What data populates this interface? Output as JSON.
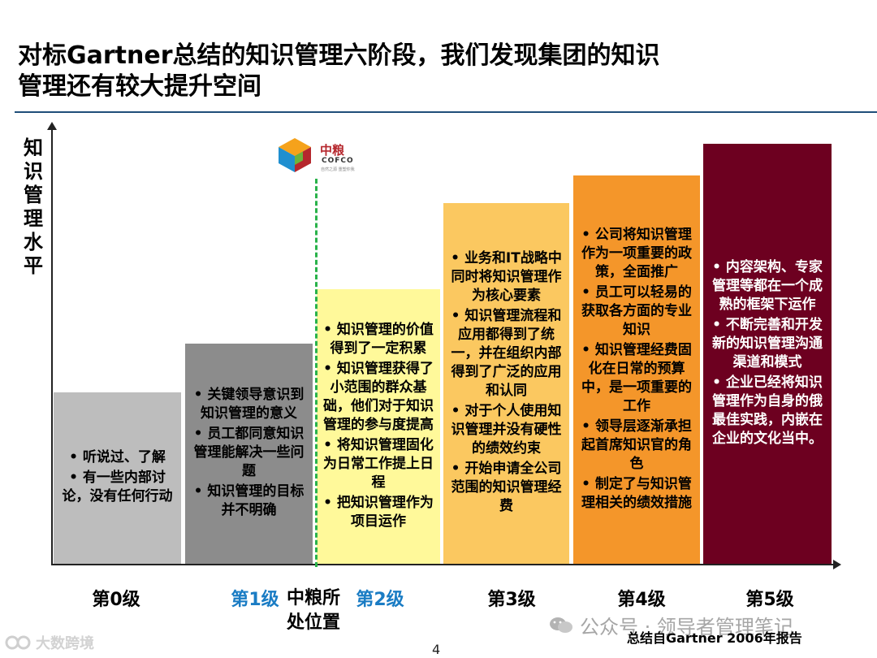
{
  "title": {
    "line1": "对标Gartner总结的知识管理六阶段，我们发现集团的知识",
    "line2": "管理还有较大提升空间"
  },
  "y_axis": {
    "chars": [
      "知",
      "识",
      "管",
      "理",
      "水",
      "平"
    ]
  },
  "logo": {
    "cn": "中粮",
    "en": "COFCO",
    "sub": "自然之源 重塑你我"
  },
  "bars": [
    {
      "items": [
        "听说过、了解",
        "有一些内部讨论，没有任何行动"
      ]
    },
    {
      "items": [
        "关键领导意识到知识管理的意义",
        "员工都同意知识管理能解决一些问题",
        "知识管理的目标并不明确"
      ]
    },
    {
      "items": [
        "知识管理的价值得到了一定积累",
        "知识管理获得了小范围的群众基础，他们对于知识管理的参与度提高",
        "将知识管理固化为日常工作提上日程",
        "把知识管理作为项目运作"
      ]
    },
    {
      "items": [
        "业务和IT战略中同时将知识管理作为核心要素",
        "知识管理流程和应用都得到了统一，并在组织内部得到了广泛的应用和认同",
        "对于个人使用知识管理并没有硬性的绩效约束",
        "开始申请全公司范围的知识管理经费"
      ]
    },
    {
      "items": [
        "公司将知识管理作为一项重要的政策，全面推广",
        "员工可以轻易的获取各方面的专业知识",
        "知识管理经费固化在日常的预算中，是一项重要的工作",
        "领导层逐渐承担起首席知识官的角色",
        "制定了与知识管理相关的绩效措施"
      ]
    },
    {
      "items": [
        "内容架构、专家管理等都在一个成熟的框架下运作",
        "不断完善和开发新的知识管理沟通渠道和模式",
        "企业已经将知识管理作为自身的俄最佳实践，内嵌在企业的文化当中。"
      ]
    }
  ],
  "levels": [
    "第0级",
    "第1级",
    "第2级",
    "第3级",
    "第4级",
    "第5级"
  ],
  "position_label": {
    "line1": "中粮所",
    "line2": "处位置"
  },
  "source": "总结自Gartner 2006年报告",
  "page_number": "4",
  "watermark_right": "公众号 · 领导者管理笔记",
  "watermark_left": "大数跨境",
  "colors": {
    "level0": "#bdbdbd",
    "level1": "#8c8c8c",
    "level2": "#fff99a",
    "level3": "#fbc860",
    "level4": "#f4962a",
    "level5": "#6d0020",
    "highlight_level": "#1a7cc4",
    "marker_line": "#29b24a"
  }
}
